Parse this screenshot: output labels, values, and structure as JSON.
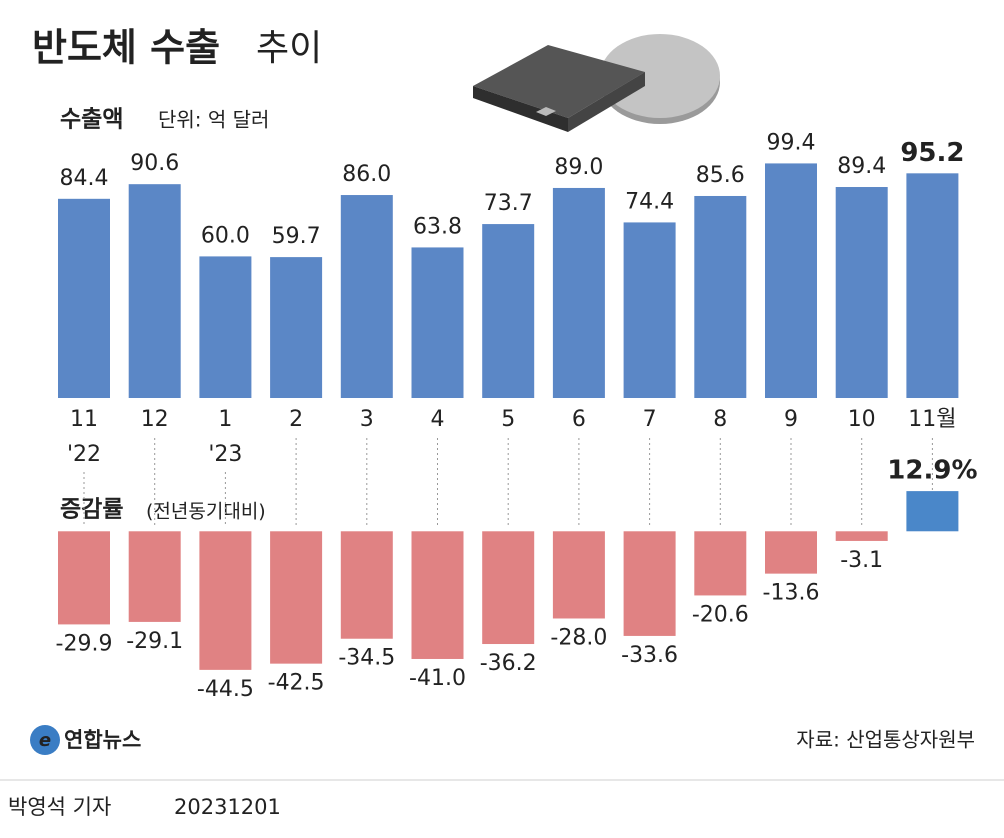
{
  "header": {
    "title": "반도체 수출",
    "title_suffix": "추이"
  },
  "chart_data": [
    {
      "type": "bar",
      "subtitle": "수출액",
      "unit_label": "단위: 억 달러",
      "categories": [
        "11",
        "12",
        "1",
        "2",
        "3",
        "4",
        "5",
        "6",
        "7",
        "8",
        "9",
        "10",
        "11월"
      ],
      "year_labels": [
        "'22",
        null,
        "'23",
        null,
        null,
        null,
        null,
        null,
        null,
        null,
        null,
        null,
        null
      ],
      "values": [
        84.4,
        90.6,
        60.0,
        59.7,
        86.0,
        63.8,
        73.7,
        89.0,
        74.4,
        85.6,
        99.4,
        89.4,
        95.2
      ],
      "value_labels": [
        "84.4",
        "90.6",
        "60.0",
        "59.7",
        "86.0",
        "63.8",
        "73.7",
        "89.0",
        "74.4",
        "85.6",
        "99.4",
        "89.4",
        "95.2"
      ],
      "color": "#5b87c6",
      "ylim": [
        0,
        100
      ]
    },
    {
      "type": "bar",
      "subtitle": "증감률",
      "unit_label": "(전년동기대비)",
      "values": [
        -29.9,
        -29.1,
        -44.5,
        -42.5,
        -34.5,
        -41.0,
        -36.2,
        -28.0,
        -33.6,
        -20.6,
        -13.6,
        -3.1,
        12.9
      ],
      "value_labels": [
        "-29.9",
        "-29.1",
        "-44.5",
        "-42.5",
        "-34.5",
        "-41.0",
        "-36.2",
        "-28.0",
        "-33.6",
        "-20.6",
        "-13.6",
        "-3.1",
        "12.9%"
      ],
      "color": "#e08283",
      "positive_color": "#4a87c9",
      "ylim": [
        -50,
        20
      ]
    }
  ],
  "footer": {
    "logo": "연합뉴스",
    "source": "자료: 산업통상자원부",
    "reporter": "박영석 기자",
    "date": "20231201"
  }
}
